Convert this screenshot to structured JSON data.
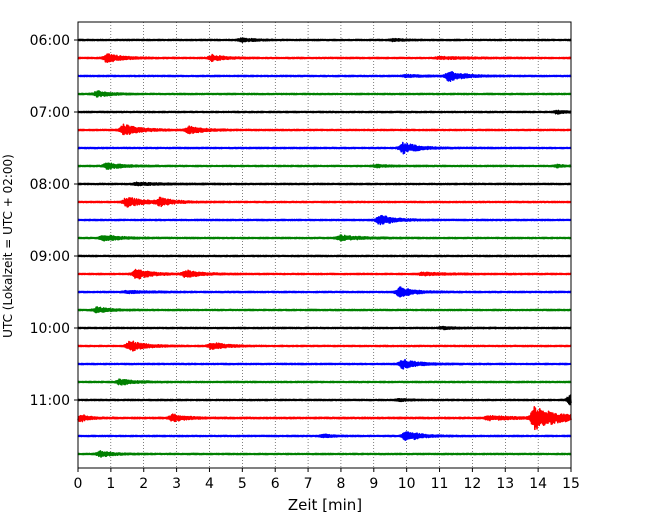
{
  "chart_data": {
    "type": "line",
    "title": "",
    "xlabel": "Zeit  [min]",
    "ylabel": "UTC (Lokalzeit = UTC + 02:00)",
    "xlim": [
      0,
      15
    ],
    "x_ticks": [
      "0",
      "1",
      "2",
      "3",
      "4",
      "5",
      "6",
      "7",
      "8",
      "9",
      "10",
      "11",
      "12",
      "13",
      "14",
      "15"
    ],
    "y_ticks": [
      "06:00",
      "07:00",
      "08:00",
      "09:00",
      "10:00",
      "11:00"
    ],
    "grid": "vertical dotted",
    "trace_interval_min": 15,
    "colors": [
      "#000000",
      "#ff0000",
      "#0000ff",
      "#008000"
    ],
    "series": [
      {
        "start": "06:00",
        "color": "#000000",
        "noise": 0.6,
        "events": [
          {
            "t": 5.0,
            "amp": 1.6,
            "dur": 0.8
          },
          {
            "t": 9.6,
            "amp": 1.0,
            "dur": 0.6
          }
        ]
      },
      {
        "start": "06:15",
        "color": "#ff0000",
        "noise": 0.6,
        "events": [
          {
            "t": 0.9,
            "amp": 4.5,
            "dur": 0.9
          },
          {
            "t": 4.1,
            "amp": 3.0,
            "dur": 0.8
          },
          {
            "t": 11.0,
            "amp": 1.0,
            "dur": 2.0
          }
        ]
      },
      {
        "start": "06:30",
        "color": "#0000ff",
        "noise": 0.6,
        "events": [
          {
            "t": 11.3,
            "amp": 5.0,
            "dur": 0.9
          },
          {
            "t": 10.0,
            "amp": 1.0,
            "dur": 1.0
          }
        ]
      },
      {
        "start": "06:45",
        "color": "#008000",
        "noise": 0.6,
        "events": [
          {
            "t": 0.6,
            "amp": 2.6,
            "dur": 0.8
          }
        ]
      },
      {
        "start": "07:00",
        "color": "#000000",
        "noise": 0.6,
        "events": [
          {
            "t": 14.6,
            "amp": 1.5,
            "dur": 0.5
          }
        ]
      },
      {
        "start": "07:15",
        "color": "#ff0000",
        "noise": 0.6,
        "events": [
          {
            "t": 1.4,
            "amp": 5.5,
            "dur": 1.0
          },
          {
            "t": 3.4,
            "amp": 3.5,
            "dur": 0.9
          }
        ]
      },
      {
        "start": "07:30",
        "color": "#0000ff",
        "noise": 0.6,
        "events": [
          {
            "t": 9.9,
            "amp": 5.5,
            "dur": 0.9
          }
        ]
      },
      {
        "start": "07:45",
        "color": "#008000",
        "noise": 0.6,
        "events": [
          {
            "t": 0.9,
            "amp": 3.0,
            "dur": 0.9
          },
          {
            "t": 9.1,
            "amp": 1.2,
            "dur": 0.8
          },
          {
            "t": 14.6,
            "amp": 1.2,
            "dur": 0.5
          }
        ]
      },
      {
        "start": "08:00",
        "color": "#000000",
        "noise": 0.6,
        "events": [
          {
            "t": 1.8,
            "amp": 1.2,
            "dur": 1.6
          }
        ]
      },
      {
        "start": "08:15",
        "color": "#ff0000",
        "noise": 0.6,
        "events": [
          {
            "t": 1.5,
            "amp": 5.0,
            "dur": 1.0
          },
          {
            "t": 2.5,
            "amp": 3.5,
            "dur": 0.9
          }
        ]
      },
      {
        "start": "08:30",
        "color": "#0000ff",
        "noise": 0.6,
        "events": [
          {
            "t": 9.2,
            "amp": 5.0,
            "dur": 0.9
          }
        ]
      },
      {
        "start": "08:45",
        "color": "#008000",
        "noise": 0.6,
        "events": [
          {
            "t": 0.8,
            "amp": 3.0,
            "dur": 1.0
          },
          {
            "t": 8.0,
            "amp": 2.5,
            "dur": 1.2
          }
        ]
      },
      {
        "start": "09:00",
        "color": "#000000",
        "noise": 0.6,
        "events": []
      },
      {
        "start": "09:15",
        "color": "#ff0000",
        "noise": 0.6,
        "events": [
          {
            "t": 1.8,
            "amp": 5.0,
            "dur": 0.9
          },
          {
            "t": 3.3,
            "amp": 3.5,
            "dur": 0.9
          },
          {
            "t": 10.5,
            "amp": 1.3,
            "dur": 1.5
          }
        ]
      },
      {
        "start": "09:30",
        "color": "#0000ff",
        "noise": 0.6,
        "events": [
          {
            "t": 9.8,
            "amp": 5.0,
            "dur": 0.9
          },
          {
            "t": 1.5,
            "amp": 1.0,
            "dur": 1.5
          }
        ]
      },
      {
        "start": "09:45",
        "color": "#008000",
        "noise": 0.6,
        "events": [
          {
            "t": 0.6,
            "amp": 2.6,
            "dur": 0.8
          }
        ]
      },
      {
        "start": "10:00",
        "color": "#000000",
        "noise": 0.6,
        "events": [
          {
            "t": 11.1,
            "amp": 1.0,
            "dur": 1.0
          }
        ]
      },
      {
        "start": "10:15",
        "color": "#ff0000",
        "noise": 0.6,
        "events": [
          {
            "t": 1.6,
            "amp": 5.0,
            "dur": 0.9
          },
          {
            "t": 4.1,
            "amp": 3.5,
            "dur": 0.8
          }
        ]
      },
      {
        "start": "10:30",
        "color": "#0000ff",
        "noise": 0.6,
        "events": [
          {
            "t": 9.9,
            "amp": 4.5,
            "dur": 0.9
          }
        ]
      },
      {
        "start": "10:45",
        "color": "#008000",
        "noise": 0.6,
        "events": [
          {
            "t": 1.3,
            "amp": 2.8,
            "dur": 0.9
          }
        ]
      },
      {
        "start": "11:00",
        "color": "#000000",
        "noise": 0.6,
        "events": [
          {
            "t": 15.0,
            "amp": 5.0,
            "dur": 0.3
          },
          {
            "t": 9.8,
            "amp": 1.0,
            "dur": 0.6
          }
        ]
      },
      {
        "start": "11:15",
        "color": "#ff0000",
        "noise": 0.7,
        "events": [
          {
            "t": 0.1,
            "amp": 3.5,
            "dur": 0.5
          },
          {
            "t": 2.9,
            "amp": 3.5,
            "dur": 0.8
          },
          {
            "t": 12.5,
            "amp": 2.0,
            "dur": 1.5
          },
          {
            "t": 13.9,
            "amp": 11.0,
            "dur": 1.6
          }
        ]
      },
      {
        "start": "11:30",
        "color": "#0000ff",
        "noise": 0.6,
        "events": [
          {
            "t": 10.0,
            "amp": 5.0,
            "dur": 0.9
          },
          {
            "t": 7.5,
            "amp": 1.5,
            "dur": 0.5
          }
        ]
      },
      {
        "start": "11:45",
        "color": "#008000",
        "noise": 0.6,
        "events": [
          {
            "t": 0.7,
            "amp": 2.6,
            "dur": 0.8
          }
        ]
      }
    ]
  }
}
